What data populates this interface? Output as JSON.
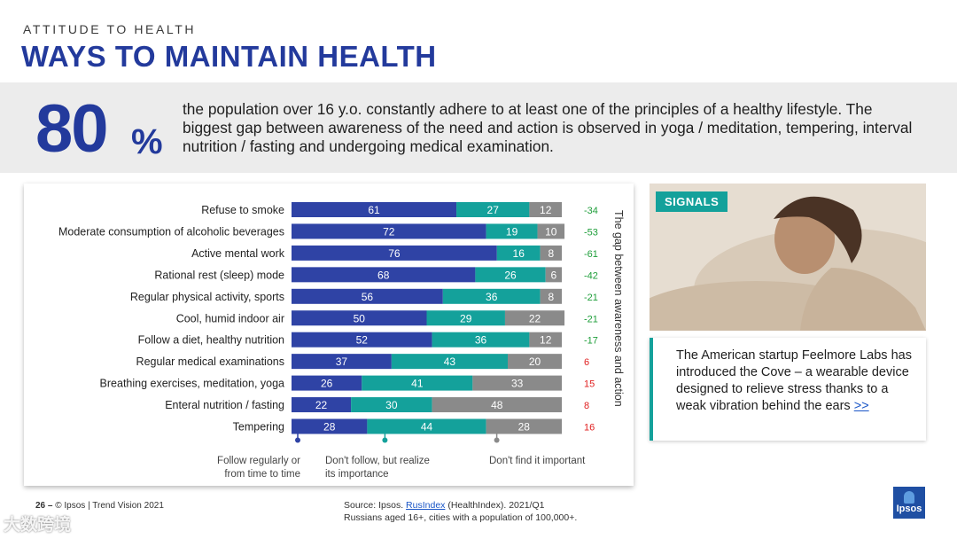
{
  "header": {
    "kicker": "ATTITUDE TO HEALTH",
    "title": "WAYS TO MAINTAIN HEALTH"
  },
  "highlight": {
    "number": "80",
    "percent_sign": "%",
    "text": "the population over 16 y.o. constantly adhere to at least one of the principles of a healthy lifestyle. The biggest gap between awareness of the need and action is observed in yoga / meditation, tempering, interval nutrition / fasting and undergoing medical examination."
  },
  "colors": {
    "brand": "#233a9c",
    "teal": "#14a19b",
    "gray": "#8a8a8a",
    "negative": "#1e9e3a",
    "positive": "#e02020"
  },
  "chart_data": {
    "type": "bar",
    "orientation": "horizontal",
    "stacked": true,
    "categories": [
      "Refuse to smoke",
      "Moderate consumption of alcoholic beverages",
      "Active mental work",
      "Rational rest (sleep) mode",
      "Regular physical activity, sports",
      "Cool, humid indoor air",
      "Follow a diet, healthy nutrition",
      "Regular medical examinations",
      "Breathing exercises, meditation, yoga",
      "Enteral nutrition / fasting",
      "Tempering"
    ],
    "series": [
      {
        "name": "Follow regularly or from time to time",
        "color": "#2f43a5",
        "values": [
          61,
          72,
          76,
          68,
          56,
          50,
          52,
          37,
          26,
          22,
          28
        ]
      },
      {
        "name": "Don't follow, but realize its importance",
        "color": "#14a19b",
        "values": [
          27,
          19,
          16,
          26,
          36,
          29,
          36,
          43,
          41,
          30,
          44
        ]
      },
      {
        "name": "Don't find it important",
        "color": "#8a8a8a",
        "values": [
          12,
          10,
          8,
          6,
          8,
          22,
          12,
          20,
          33,
          48,
          28
        ]
      }
    ],
    "gap": {
      "label": "The gap between awareness and action",
      "values": [
        "-34",
        "-53",
        "-61",
        "-42",
        "-21",
        "-21",
        "-17",
        "6",
        "15",
        "8",
        "16"
      ]
    },
    "legend": [
      {
        "line1": "Follow regularly or",
        "line2": "from time to time"
      },
      {
        "line1": "Don't follow, but realize",
        "line2": "its importance"
      },
      {
        "line1": "Don't find it important",
        "line2": ""
      }
    ],
    "xlim": [
      0,
      100
    ]
  },
  "signals": {
    "badge": "SIGNALS",
    "text": "The American startup Feelmore Labs has introduced the Cove – a wearable device designed to relieve stress thanks to a weak vibration behind the ears",
    "link": ">>"
  },
  "footer": {
    "page_number": "26 –",
    "copyright": "© Ipsos | Trend Vision 2021"
  },
  "source": {
    "prefix": "Source: Ipsos.",
    "link": "RusIndex",
    "suffix": "(HealthIndex). 2021/Q1",
    "line2": "Russians aged 16+, cities with a population of 100,000+."
  },
  "logo": {
    "text": "Ipsos"
  },
  "watermark": {
    "text": "大数跨境"
  }
}
